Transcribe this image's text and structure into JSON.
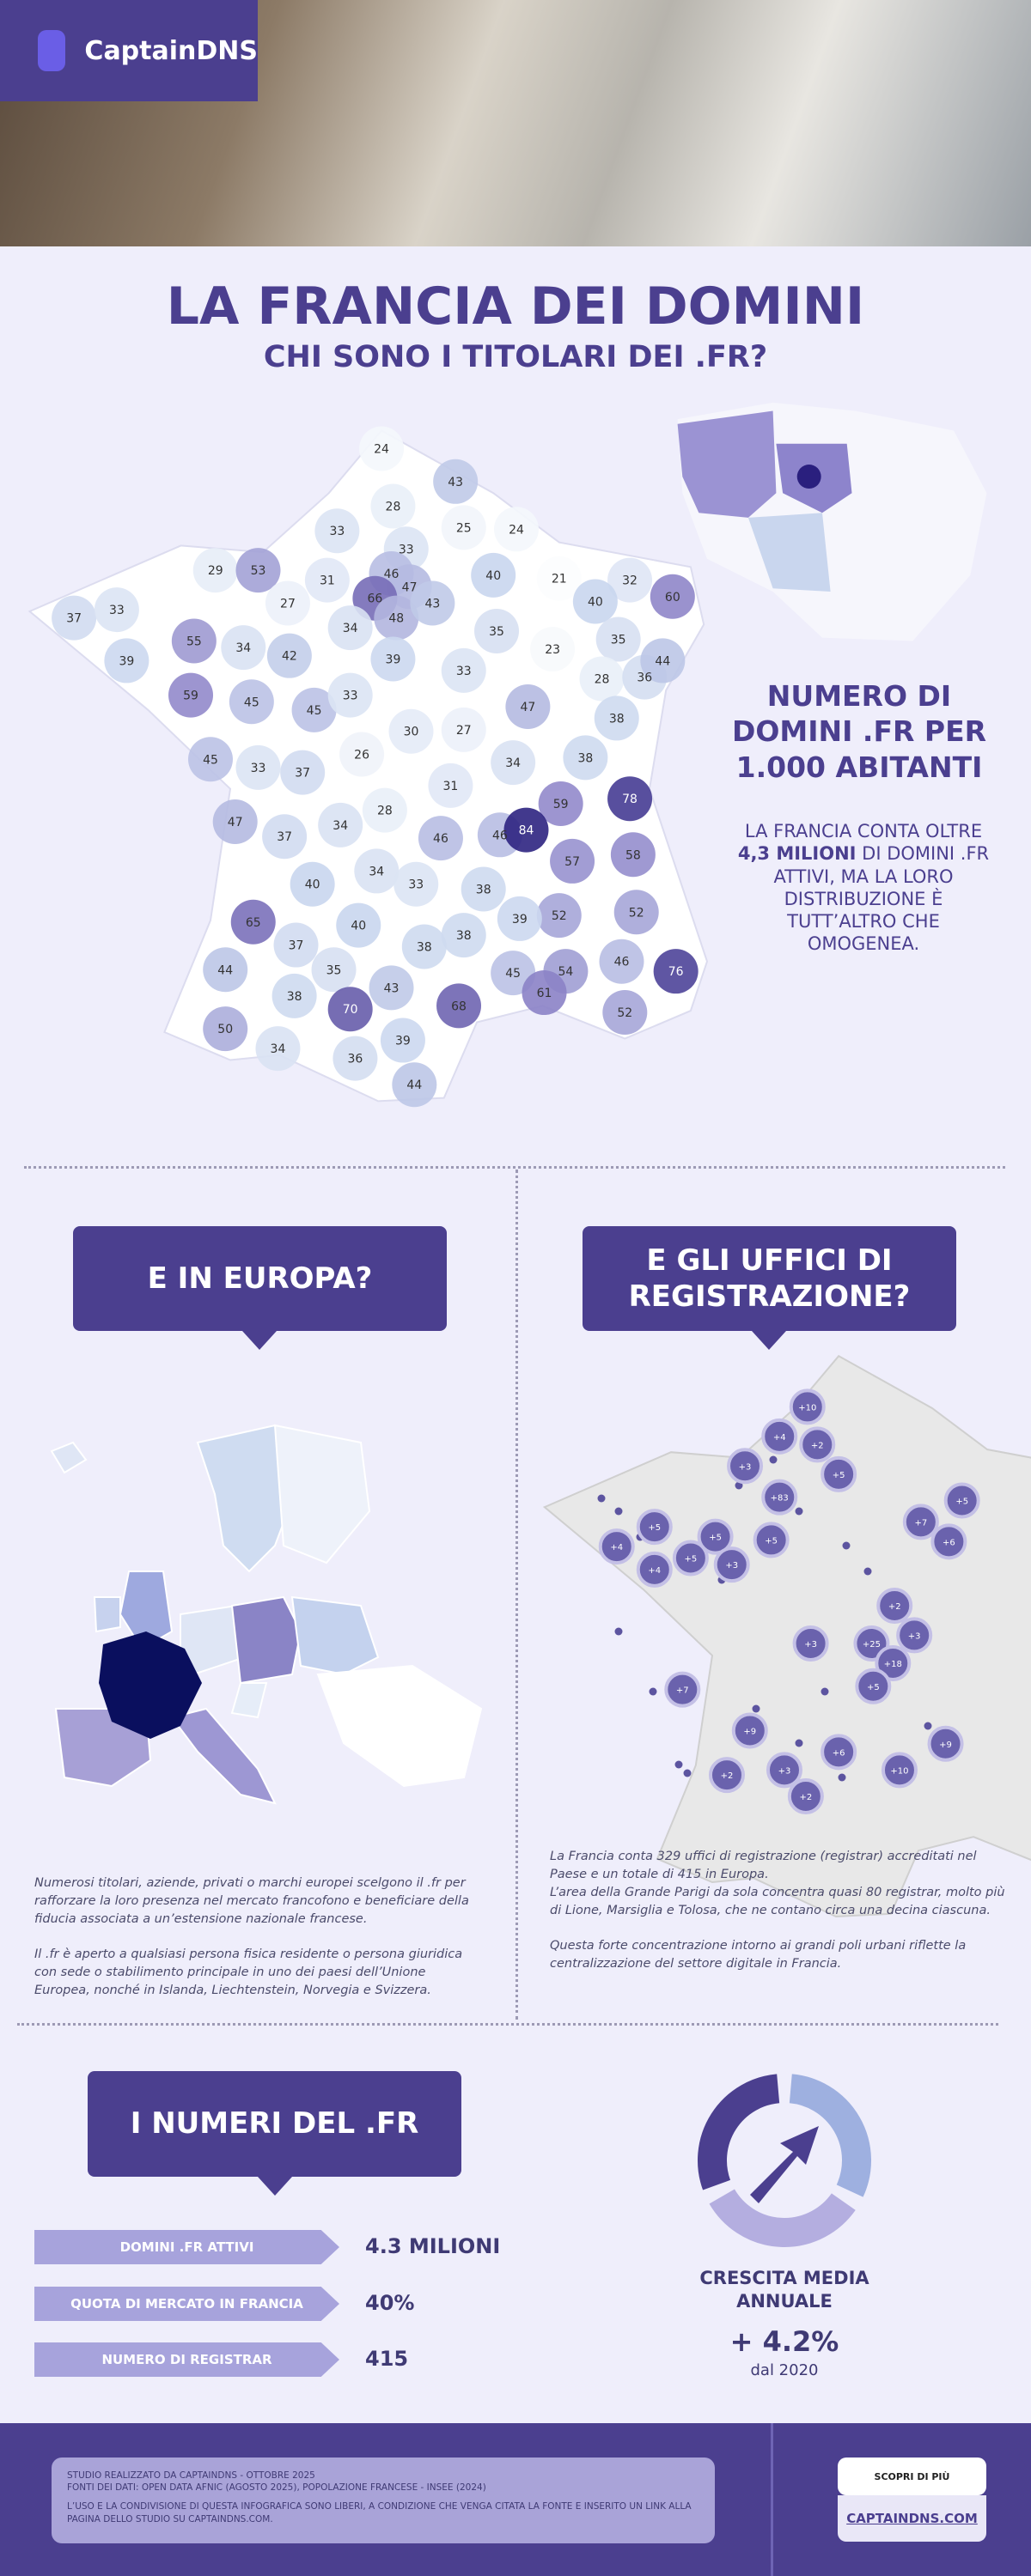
{
  "header": {
    "brand": "CaptainDNS",
    "title": "LA FRANCIA DEI DOMINI",
    "subtitle": "CHI SONO I TITOLARI DEI .FR?"
  },
  "map": {
    "heading": "NUMERO DI DOMINI .FR PER 1.000 ABITANTI",
    "text_start": "LA FRANCIA CONTA OLTRE ",
    "text_bold": "4,3 MILIONI",
    "text_end": " DI DOMINI .FR ATTIVI, MA LA LORO DISTRIBUZIONE È TUTT’ALTRO CHE OMOGENEA.",
    "values": [
      24,
      43,
      28,
      33,
      25,
      24,
      33,
      29,
      53,
      31,
      46,
      47,
      66,
      48,
      43,
      40,
      21,
      32,
      60,
      37,
      33,
      27,
      40,
      34,
      35,
      55,
      34,
      42,
      39,
      23,
      35,
      39,
      33,
      28,
      36,
      44,
      59,
      45,
      45,
      33,
      47,
      38,
      30,
      27,
      26,
      45,
      33,
      37,
      31,
      34,
      38,
      59,
      78,
      28,
      34,
      47,
      37,
      46,
      46,
      84,
      57,
      58,
      34,
      33,
      40,
      38,
      65,
      40,
      52,
      52,
      39,
      37,
      38,
      38,
      46,
      44,
      35,
      43,
      45,
      54,
      76,
      38,
      61,
      70,
      68,
      52,
      50,
      34,
      39,
      36,
      44
    ]
  },
  "europe": {
    "heading": "E IN EUROPA?",
    "paragraphs": [
      "Numerosi titolari, aziende, privati o marchi europei scelgono il .fr per rafforzare la loro presenza nel mercato francofono e beneficiare della fiducia associata a un’estensione nazionale francese.",
      "Il .fr è aperto a qualsiasi persona fisica residente o persona giuridica con sede o stabilimento principale in uno dei paesi dell’Unione Europea, nonché in Islanda, Liechtenstein, Norvegia e Svizzera."
    ]
  },
  "registrars": {
    "heading": "E GLI UFFICI DI REGISTRAZIONE?",
    "bubbles": [
      "+10",
      "+4",
      "+2",
      "+3",
      "+5",
      "+83",
      "+5",
      "+4",
      "+5",
      "+5",
      "+5",
      "+7",
      "+6",
      "+4",
      "+5",
      "+3",
      "+2",
      "+3",
      "+25",
      "+3",
      "+18",
      "+5",
      "+7",
      "+9",
      "+6",
      "+9",
      "+3",
      "+10",
      "+2",
      "+2"
    ],
    "paragraphs": [
      "La Francia conta 329 uffici di registrazione (registrar) accreditati nel Paese e un totale di 415 in Europa.",
      "L’area della Grande Parigi da sola concentra quasi 80 registrar, molto più di Lione, Marsiglia e Tolosa, che ne contano circa una decina ciascuna.",
      "Questa forte concentrazione intorno ai grandi poli urbani riflette la centralizzazione del settore digitale in Francia."
    ]
  },
  "numbers": {
    "heading": "I NUMERI DEL .FR",
    "rows": [
      {
        "label": "DOMINI .FR ATTIVI",
        "value": "4.3 MILIONI"
      },
      {
        "label": "QUOTA DI MERCATO IN FRANCIA",
        "value": "40%"
      },
      {
        "label": "NUMERO DI REGISTRAR",
        "value": "415"
      }
    ],
    "growth_label": "CRESCITA MEDIA ANNUALE",
    "growth_value": "+ 4.2%",
    "growth_since": "dal 2020"
  },
  "footer": {
    "lines": [
      "STUDIO REALIZZATO DA CAPTAINDNS - OTTOBRE 2025",
      "FONTI DEI DATI: OPEN DATA AFNIC (AGOSTO 2025), POPOLAZIONE FRANCESE - INSEE (2024)",
      "L’USO E LA CONDIVISIONE DI QUESTA INFOGRAFICA SONO LIBERI, A CONDIZIONE CHE VENGA CITATA LA FONTE E INSERITO UN LINK ALLA PAGINA DELLO STUDIO SU CAPTAINDNS.COM."
    ],
    "cta": "SCOPRI DI PIÙ",
    "link": "CAPTAINDNS.COM"
  }
}
